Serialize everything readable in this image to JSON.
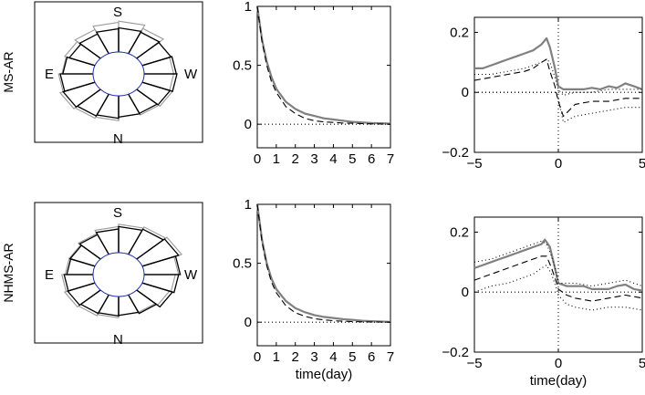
{
  "chart_data": [
    {
      "type": "polar-bar",
      "row_label": "MS-AR",
      "direction_labels": [
        "S",
        "E",
        "W",
        "N"
      ],
      "sectors": 16,
      "series": [
        {
          "name": "",
          "color": "#000000",
          "values": [
            1.0,
            0.92,
            0.88,
            0.9,
            0.95,
            1.0,
            1.05,
            1.0,
            0.92,
            0.85,
            0.9,
            0.98,
            1.02,
            0.98,
            0.95,
            0.98
          ]
        },
        {
          "name": "",
          "color": "#9a9a9a",
          "values": [
            0.9,
            1.0,
            0.95,
            0.9,
            1.05,
            1.1,
            1.15,
            1.05,
            0.95,
            1.0,
            1.1,
            1.25,
            1.3,
            1.15,
            0.95,
            0.9
          ]
        }
      ]
    },
    {
      "type": "line",
      "xlabel": "",
      "xlim": [
        0,
        7
      ],
      "ylim": [
        -0.2,
        1
      ],
      "xticks": [
        "0",
        "1",
        "2",
        "3",
        "4",
        "5",
        "6",
        "7"
      ],
      "yticks": [
        "0",
        "0.5",
        "1"
      ],
      "series": [
        {
          "name": "",
          "style": "solid-gray",
          "x": [
            0,
            0.25,
            0.5,
            0.75,
            1,
            1.5,
            2,
            2.5,
            3,
            3.5,
            4,
            4.5,
            5,
            5.5,
            6,
            6.5,
            7
          ],
          "y": [
            1,
            0.72,
            0.53,
            0.4,
            0.3,
            0.19,
            0.13,
            0.09,
            0.07,
            0.05,
            0.04,
            0.03,
            0.02,
            0.015,
            0.01,
            0.008,
            0.005
          ]
        },
        {
          "name": "",
          "style": "dashed-black",
          "x": [
            0,
            0.25,
            0.5,
            0.75,
            1,
            1.5,
            2,
            2.5,
            3,
            3.5,
            4,
            4.5,
            5,
            5.5,
            6,
            6.5,
            7
          ],
          "y": [
            1,
            0.7,
            0.5,
            0.36,
            0.27,
            0.15,
            0.09,
            0.05,
            0.03,
            0.02,
            0.015,
            0.01,
            0.008,
            0.005,
            0.003,
            0.002,
            0
          ]
        },
        {
          "name": "",
          "style": "dotted-black",
          "x": [
            0,
            7
          ],
          "y": [
            0,
            0
          ]
        }
      ]
    },
    {
      "type": "line",
      "xlabel": "",
      "xlim": [
        -5,
        5
      ],
      "ylim": [
        -0.2,
        0.25
      ],
      "xticks": [
        "−5",
        "0",
        "5"
      ],
      "yticks": [
        "−0.2",
        "0",
        "0.2"
      ],
      "series": [
        {
          "name": "",
          "style": "solid-gray",
          "x": [
            -5,
            -4.5,
            -4,
            -3.5,
            -3,
            -2.5,
            -2,
            -1.5,
            -1,
            -0.7,
            -0.5,
            -0.2,
            0,
            0.3,
            1,
            1.5,
            2,
            2.5,
            3,
            3.5,
            4,
            4.5,
            5
          ],
          "y": [
            0.08,
            0.08,
            0.09,
            0.1,
            0.11,
            0.12,
            0.13,
            0.14,
            0.16,
            0.18,
            0.15,
            0.08,
            0.02,
            0.01,
            0.01,
            0.01,
            0.015,
            0.01,
            0.02,
            0.015,
            0.03,
            0.02,
            0.01
          ]
        },
        {
          "name": "",
          "style": "dashed-black",
          "x": [
            -5,
            -4,
            -3,
            -2,
            -1.5,
            -1,
            -0.7,
            -0.5,
            -0.2,
            0,
            0.3,
            1,
            2,
            3,
            4,
            5
          ],
          "y": [
            0.04,
            0.05,
            0.06,
            0.07,
            0.08,
            0.1,
            0.11,
            0.07,
            0.02,
            -0.03,
            -0.08,
            -0.04,
            -0.03,
            -0.03,
            -0.02,
            -0.02
          ]
        },
        {
          "name": "",
          "style": "dotted-black",
          "x": [
            -5,
            -4,
            -3,
            -2,
            -1,
            -0.7,
            -0.5,
            -0.2,
            0,
            0.3,
            1,
            2,
            3,
            4,
            5
          ],
          "y": [
            0.06,
            0.06,
            0.07,
            0.08,
            0.1,
            0.11,
            0.1,
            0.05,
            0.01,
            -0.01,
            0.0,
            0.0,
            0.01,
            0.01,
            0.01
          ]
        },
        {
          "name": "",
          "style": "dotted-black",
          "x": [
            -5,
            -4,
            -3,
            -2,
            -1,
            -0.7,
            -0.5,
            -0.2,
            0,
            0.3,
            1,
            2,
            3,
            4,
            5
          ],
          "y": [
            0.0,
            0.0,
            0.0,
            0.0,
            0.0,
            0.0,
            0.0,
            0.0,
            -0.02,
            -0.1,
            -0.08,
            -0.07,
            -0.06,
            -0.05,
            -0.05
          ]
        },
        {
          "name": "",
          "style": "dotted-black",
          "x": [
            -5,
            5
          ],
          "y": [
            0,
            0
          ]
        }
      ]
    },
    {
      "type": "polar-bar",
      "row_label": "NHMS-AR",
      "direction_labels": [
        "S",
        "E",
        "W",
        "N"
      ],
      "sectors": 16,
      "series": [
        {
          "name": "",
          "color": "#000000",
          "values": [
            1.05,
            1.0,
            0.85,
            0.8,
            0.82,
            0.85,
            0.9,
            0.88,
            0.8,
            0.82,
            0.9,
            1.0,
            1.1,
            1.15,
            1.2,
            1.1
          ]
        },
        {
          "name": "",
          "color": "#9a9a9a",
          "values": [
            0.95,
            0.9,
            0.8,
            0.8,
            0.9,
            0.95,
            1.0,
            0.95,
            0.85,
            0.85,
            0.95,
            1.1,
            1.2,
            1.25,
            1.3,
            1.05
          ]
        }
      ]
    },
    {
      "type": "line",
      "xlabel": "time(day)",
      "xlim": [
        0,
        7
      ],
      "ylim": [
        -0.2,
        1
      ],
      "xticks": [
        "0",
        "1",
        "2",
        "3",
        "4",
        "5",
        "6",
        "7"
      ],
      "yticks": [
        "0",
        "0.5",
        "1"
      ],
      "series": [
        {
          "name": "",
          "style": "solid-gray",
          "x": [
            0,
            0.25,
            0.5,
            0.75,
            1,
            1.5,
            2,
            2.5,
            3,
            3.5,
            4,
            4.5,
            5,
            5.5,
            6,
            6.5,
            7
          ],
          "y": [
            1,
            0.7,
            0.5,
            0.37,
            0.28,
            0.18,
            0.12,
            0.085,
            0.06,
            0.045,
            0.035,
            0.025,
            0.02,
            0.012,
            0.008,
            0.005,
            0.003
          ]
        },
        {
          "name": "",
          "style": "dashed-black",
          "x": [
            0,
            0.25,
            0.5,
            0.75,
            1,
            1.5,
            2,
            2.5,
            3,
            3.5,
            4,
            4.5,
            5,
            5.5,
            6,
            6.5,
            7
          ],
          "y": [
            1,
            0.68,
            0.48,
            0.34,
            0.25,
            0.14,
            0.08,
            0.05,
            0.03,
            0.02,
            0.012,
            0.008,
            0.005,
            0.003,
            0.002,
            0.001,
            0
          ]
        },
        {
          "name": "",
          "style": "dotted-black",
          "x": [
            0,
            7
          ],
          "y": [
            0,
            0
          ]
        }
      ]
    },
    {
      "type": "line",
      "xlabel": "time(day)",
      "xlim": [
        -5,
        5
      ],
      "ylim": [
        -0.2,
        0.25
      ],
      "xticks": [
        "−5",
        "0",
        "5"
      ],
      "yticks": [
        "−0.2",
        "0",
        "0.2"
      ],
      "series": [
        {
          "name": "",
          "style": "solid-gray",
          "x": [
            -5,
            -4.5,
            -4,
            -3.5,
            -3,
            -2.5,
            -2,
            -1.5,
            -1,
            -0.8,
            -0.5,
            -0.2,
            0,
            0.5,
            1,
            1.5,
            2,
            2.5,
            3,
            3.5,
            4,
            4.5,
            5
          ],
          "y": [
            0.08,
            0.09,
            0.1,
            0.11,
            0.12,
            0.13,
            0.14,
            0.15,
            0.16,
            0.175,
            0.15,
            0.08,
            0.03,
            0.02,
            0.02,
            0.02,
            0.01,
            0.01,
            0.01,
            0.02,
            0.025,
            0.01,
            0.005
          ]
        },
        {
          "name": "",
          "style": "dashed-black",
          "x": [
            -5,
            -4,
            -3,
            -2,
            -1.5,
            -1,
            -0.7,
            -0.4,
            -0.1,
            0,
            0.5,
            1,
            2,
            3,
            4,
            5
          ],
          "y": [
            0.04,
            0.06,
            0.08,
            0.1,
            0.11,
            0.12,
            0.12,
            0.08,
            0.03,
            0.01,
            -0.01,
            -0.02,
            -0.03,
            -0.02,
            -0.01,
            -0.02
          ]
        },
        {
          "name": "",
          "style": "dotted-black",
          "x": [
            -5,
            -4,
            -3,
            -2,
            -1.5,
            -1,
            -0.7,
            -0.4,
            -0.1,
            0,
            0.5,
            1,
            2,
            3,
            4,
            5
          ],
          "y": [
            0.1,
            0.11,
            0.13,
            0.15,
            0.16,
            0.17,
            0.16,
            0.12,
            0.06,
            0.03,
            0.03,
            0.03,
            0.02,
            0.03,
            0.04,
            0.02
          ]
        },
        {
          "name": "",
          "style": "dotted-black",
          "x": [
            -5,
            -4,
            -3,
            -2,
            -1.5,
            -1,
            -0.7,
            -0.4,
            -0.1,
            0,
            0.5,
            1,
            2,
            3,
            4,
            5
          ],
          "y": [
            0.0,
            0.02,
            0.03,
            0.05,
            0.06,
            0.08,
            0.09,
            0.06,
            0.01,
            -0.01,
            -0.04,
            -0.05,
            -0.06,
            -0.05,
            -0.05,
            -0.06
          ]
        },
        {
          "name": "",
          "style": "dotted-black",
          "x": [
            -5,
            5
          ],
          "y": [
            0,
            0
          ]
        }
      ]
    }
  ]
}
